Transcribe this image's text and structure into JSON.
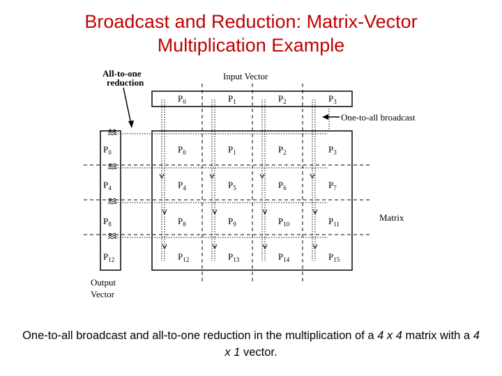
{
  "title": {
    "line1": "Broadcast and Reduction: Matrix-Vector",
    "line2": "Multiplication Example"
  },
  "diagram": {
    "all_to_one_label_1": "All-to-one",
    "all_to_one_label_2": "reduction",
    "input_vector_label": "Input Vector",
    "one_to_all_label": "One-to-all broadcast",
    "matrix_label": "Matrix",
    "output_vector_label_1": "Output",
    "output_vector_label_2": "Vector",
    "input_cells": [
      "0",
      "1",
      "2",
      "3"
    ],
    "matrix_cells": [
      "0",
      "1",
      "2",
      "3",
      "4",
      "5",
      "6",
      "7",
      "8",
      "9",
      "10",
      "11",
      "12",
      "13",
      "14",
      "15"
    ],
    "output_cells": [
      "0",
      "4",
      "8",
      "12"
    ],
    "proc_prefix": "P"
  },
  "caption": {
    "part1": "One-to-all broadcast and all-to-one reduction in the multiplication of a ",
    "part2": "4 x 4",
    "part3": " matrix with a ",
    "part4": "4 x 1",
    "part5": " vector."
  }
}
